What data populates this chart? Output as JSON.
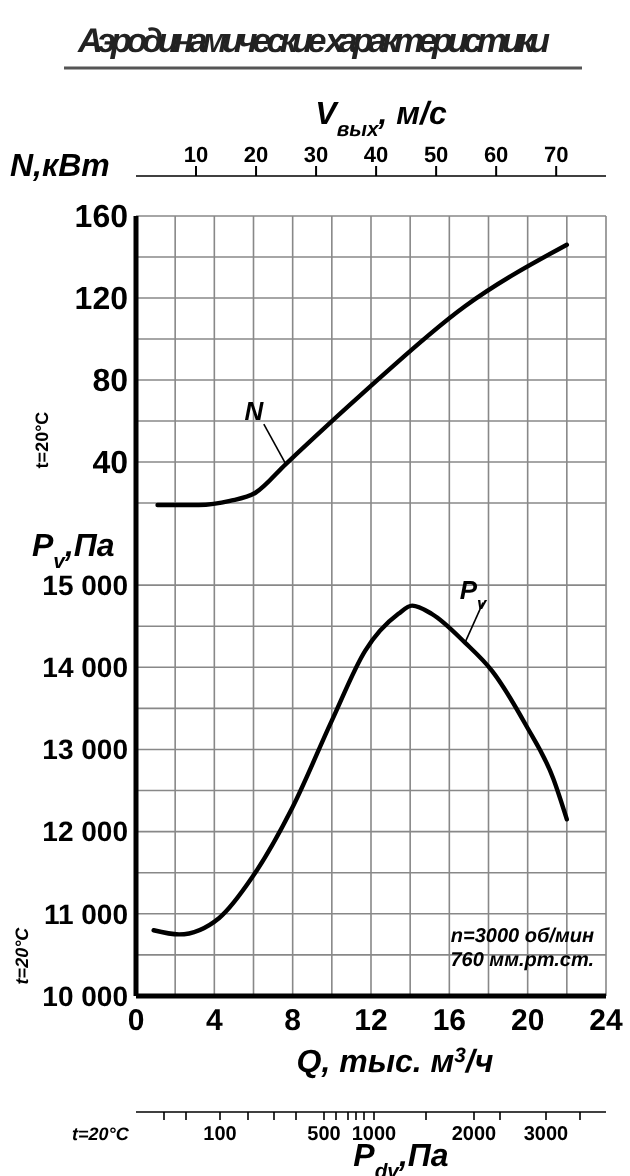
{
  "chart_data": [
    {
      "type": "line",
      "title": "Аэродинамические характеристики",
      "ylabel": "N,кВт",
      "x2label": "V$_{вых}$, м/с",
      "annotations": [
        "t=20°C"
      ],
      "xlim": [
        0,
        24
      ],
      "xticks": [
        0,
        2,
        4,
        6,
        8,
        10,
        12,
        14,
        16,
        18,
        20,
        22,
        24
      ],
      "ylim": [
        0,
        160
      ],
      "yticks": [
        {
          "value": 20,
          "label": null
        },
        40,
        {
          "value": 60,
          "label": null
        },
        80,
        {
          "value": 100,
          "label": null
        },
        120,
        {
          "value": 140,
          "label": null
        },
        160
      ],
      "x2lim": [
        0,
        78.3
      ],
      "x2ticks": [
        10,
        20,
        30,
        40,
        50,
        60,
        70
      ],
      "tick_labels": "y",
      "grid": true,
      "series": [
        {
          "name": "N",
          "color": "#000000",
          "x": [
            1.1,
            3.2,
            4.8,
            6.1,
            7.65,
            11.4,
            16.8,
            22
          ],
          "values": [
            19,
            19,
            21,
            25,
            39,
            72,
            116,
            146
          ]
        }
      ]
    },
    {
      "type": "line",
      "ylabel": "P$_{v}$,Па",
      "xlabel": "Q, тыс. м$^{3}$/ч",
      "annotations": [
        "n=3000 об/мин",
        "760 мм.рт.ст.",
        "t=20°C"
      ],
      "xlim": [
        0,
        24
      ],
      "xticks": [
        0,
        {
          "value": 2,
          "label": null
        },
        4,
        {
          "value": 6,
          "label": null
        },
        8,
        {
          "value": 10,
          "label": null
        },
        12,
        {
          "value": 14,
          "label": null
        },
        16,
        {
          "value": 18,
          "label": null
        },
        20,
        {
          "value": 22,
          "label": null
        },
        24
      ],
      "ylim": [
        10000,
        15500
      ],
      "yticks": [
        {
          "value": 10000,
          "label": "10 000"
        },
        {
          "value": 10500,
          "label": null
        },
        {
          "value": 11000,
          "label": "11 000"
        },
        {
          "value": 11500,
          "label": null
        },
        {
          "value": 12000,
          "label": "12 000"
        },
        {
          "value": 12500,
          "label": null
        },
        {
          "value": 13000,
          "label": "13 000"
        },
        {
          "value": 13500,
          "label": null
        },
        {
          "value": 14000,
          "label": "14 000"
        },
        {
          "value": 14500,
          "label": null
        },
        {
          "value": 15000,
          "label": "15 000"
        }
      ],
      "grid": true,
      "series": [
        {
          "name": "P$_{v}$",
          "color": "#000000",
          "x": [
            0.9,
            2.2,
            4.25,
            5.95,
            8,
            10,
            11.7,
            13.4,
            14.1,
            15.1,
            16.8,
            18.2,
            19.9,
            21.3,
            22
          ],
          "values": [
            10800,
            10750,
            10950,
            11450,
            12300,
            13350,
            14200,
            14650,
            14750,
            14650,
            14300,
            13950,
            13300,
            12650,
            12150
          ]
        }
      ]
    },
    {
      "type": "other",
      "xlabel": "P$_{dv}$,Па",
      "annotations": [
        "t=20°C",
        "100",
        "500",
        "1000",
        "2000",
        "3000"
      ]
    }
  ]
}
